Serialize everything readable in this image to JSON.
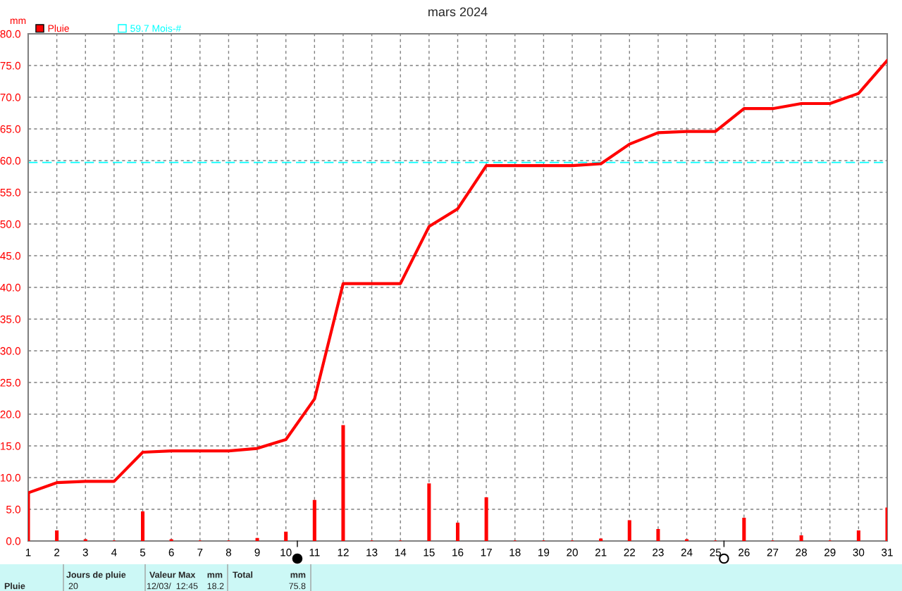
{
  "chart_data": {
    "type": "bar",
    "title": "mars 2024",
    "ylabel": "mm",
    "x": [
      1,
      2,
      3,
      4,
      5,
      6,
      7,
      8,
      9,
      10,
      11,
      12,
      13,
      14,
      15,
      16,
      17,
      18,
      19,
      20,
      21,
      22,
      23,
      24,
      25,
      26,
      27,
      28,
      29,
      30,
      31
    ],
    "series": [
      {
        "name": "Pluie",
        "color": "#ff0000",
        "values": [
          7.6,
          1.6,
          0.2,
          0,
          4.6,
          0.2,
          0,
          0,
          0.4,
          1.4,
          6.4,
          18.2,
          0,
          0,
          9.0,
          2.8,
          6.8,
          0,
          0,
          0,
          0.3,
          3.2,
          1.8,
          0.2,
          0,
          3.6,
          0,
          0.8,
          0,
          1.6,
          5.2
        ]
      },
      {
        "type": "line",
        "color": "#ff0000",
        "values": [
          7.6,
          9.2,
          9.4,
          9.4,
          14.0,
          14.2,
          14.2,
          14.2,
          14.6,
          16.0,
          22.4,
          40.6,
          40.6,
          40.6,
          49.6,
          52.4,
          59.2,
          59.2,
          59.2,
          59.2,
          59.5,
          62.6,
          64.4,
          64.6,
          64.6,
          68.2,
          68.2,
          69.0,
          69.0,
          70.6,
          75.8
        ]
      }
    ],
    "ref_lines": [
      {
        "axis": "y",
        "value": 59.7,
        "label": "59.7 Mois-#",
        "color": "#00ffff",
        "line_style": "dashed"
      }
    ],
    "xlim": [
      1,
      31
    ],
    "xticks": [
      1,
      2,
      3,
      4,
      5,
      6,
      7,
      8,
      9,
      10,
      11,
      12,
      13,
      14,
      15,
      16,
      17,
      18,
      19,
      20,
      21,
      22,
      23,
      24,
      25,
      26,
      27,
      28,
      29,
      30,
      31
    ],
    "ylim": [
      0,
      80
    ],
    "yticks": [
      {
        "value": 0,
        "label": "0.0"
      },
      {
        "value": 5,
        "label": "5.0"
      },
      {
        "value": 10,
        "label": "10.0"
      },
      {
        "value": 15,
        "label": "15.0"
      },
      {
        "value": 20,
        "label": "20.0"
      },
      {
        "value": 25,
        "label": "25.0"
      },
      {
        "value": 30,
        "label": "30.0"
      },
      {
        "value": 35,
        "label": "35.0"
      },
      {
        "value": 40,
        "label": "40.0"
      },
      {
        "value": 45,
        "label": "45.0"
      },
      {
        "value": 50,
        "label": "50.0"
      },
      {
        "value": 55,
        "label": "55.0"
      },
      {
        "value": 60,
        "label": "60.0"
      },
      {
        "value": 65,
        "label": "65.0"
      },
      {
        "value": 70,
        "label": "70.0"
      },
      {
        "value": 75,
        "label": "75.0"
      },
      {
        "value": 80,
        "label": "80.0"
      }
    ],
    "grid": true,
    "legend": "top left",
    "annotations": [
      "Jours de pluie",
      "Valeur Max",
      "mm",
      "Total",
      "mm",
      "Pluie",
      "20",
      "12/03/  12:45",
      "18.2",
      "75.8"
    ]
  }
}
